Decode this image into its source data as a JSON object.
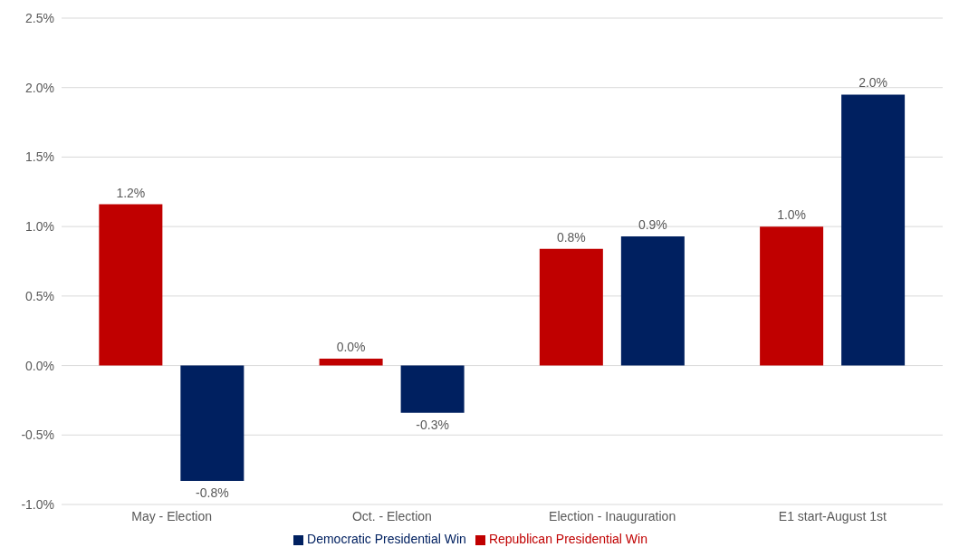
{
  "chart_data": {
    "type": "bar",
    "categories": [
      "May - Election",
      "Oct. - Election",
      "Election - Inauguration",
      "E1 start-August 1st"
    ],
    "series": [
      {
        "name": "Republican Presidential Win",
        "color": "#c00000",
        "values": [
          1.16,
          0.05,
          0.84,
          1.0
        ],
        "value_labels": [
          "1.2%",
          "0.0%",
          "0.8%",
          "1.0%"
        ]
      },
      {
        "name": "Democratic Presidential Win",
        "color": "#002060",
        "values": [
          -0.83,
          -0.34,
          0.93,
          1.95
        ],
        "value_labels": [
          "-0.8%",
          "-0.3%",
          "0.9%",
          "2.0%"
        ]
      }
    ],
    "ylim": [
      -1.0,
      2.5
    ],
    "yticks": [
      {
        "value": -1.0,
        "label": "-1.0%"
      },
      {
        "value": -0.5,
        "label": "-0.5%"
      },
      {
        "value": 0,
        "label": "0.0%"
      },
      {
        "value": 0.5,
        "label": "0.5%"
      },
      {
        "value": 1.0,
        "label": "1.0%"
      },
      {
        "value": 1.5,
        "label": "1.5%"
      },
      {
        "value": 2.0,
        "label": "2.0%"
      },
      {
        "value": 2.5,
        "label": "2.5%"
      }
    ],
    "grid": "y",
    "legend": "bottom"
  }
}
